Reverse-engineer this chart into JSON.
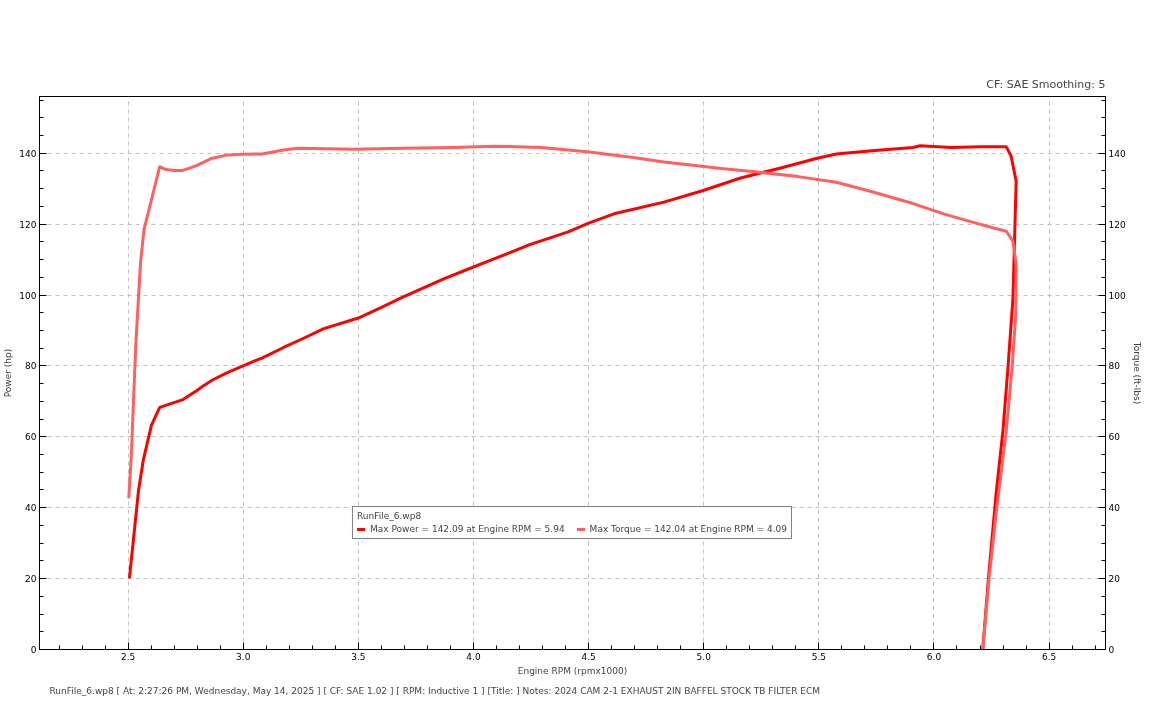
{
  "chart_data": {
    "type": "line",
    "subtitle": "CF: SAE Smoothing: 5",
    "xlabel": "Engine RPM (rpmx1000)",
    "ylabel": "Power (hp)",
    "y2label": "Torque (ft-lbs)",
    "legend_title": "RunFile_6.wp8",
    "annotations": [
      "RunFile_6.wp8 [ At: 2:27:26 PM, Wednesday, May 14, 2025 ] [ CF: SAE 1.02 ] [ RPM: Inductive 1 ] [Title: ]  Notes: 2024 CAM 2-1 EXHAUST 2IN BAFFEL STOCK TB FILTER ECM"
    ],
    "series": [
      {
        "name": "Max Power = 142.09 at Engine RPM = 5.94",
        "color": "#ff0000",
        "x": [
          2.506,
          2.545,
          2.566,
          2.601,
          2.637,
          2.735,
          2.797,
          2.829,
          2.868,
          2.931,
          2.994,
          3.042,
          3.081,
          3.175,
          3.262,
          3.35,
          3.5,
          3.6,
          3.695,
          3.868,
          4.0,
          4.078,
          4.244,
          4.411,
          4.5,
          4.61,
          4.827,
          4.994,
          5.16,
          5.326,
          5.493,
          5.576,
          5.743,
          5.909,
          5.94,
          6.076,
          6.2,
          6.292,
          6.314,
          6.335,
          6.357,
          6.343,
          6.322,
          6.3,
          6.27,
          6.237,
          6.212
        ],
        "values": [
          20.4,
          44.8,
          53.5,
          63.2,
          68.3,
          70.4,
          73.0,
          74.5,
          76.1,
          78.1,
          79.9,
          81.2,
          82.2,
          85.2,
          87.8,
          90.5,
          93.5,
          96.5,
          99.5,
          104.5,
          107.9,
          109.9,
          114.2,
          117.8,
          120.3,
          122.9,
          126.2,
          129.4,
          133.0,
          135.7,
          138.6,
          139.8,
          140.8,
          141.6,
          142.1,
          141.6,
          141.8,
          141.8,
          141.8,
          139.2,
          132.1,
          99,
          80,
          62,
          44,
          20.4,
          0
        ]
      },
      {
        "name": "Max Torque = 142.04 at Engine RPM = 4.09",
        "color": "#ff6060",
        "x": [
          2.503,
          2.514,
          2.533,
          2.554,
          2.569,
          2.601,
          2.637,
          2.664,
          2.703,
          2.735,
          2.797,
          2.86,
          2.923,
          2.994,
          3.081,
          3.175,
          3.238,
          3.478,
          3.695,
          3.911,
          4.09,
          4.294,
          4.494,
          4.694,
          4.827,
          5.077,
          5.243,
          5.41,
          5.576,
          5.743,
          5.909,
          6.042,
          6.159,
          6.259,
          6.314,
          6.343,
          6.357,
          6.355,
          6.34,
          6.314,
          6.27,
          6.24,
          6.212
        ],
        "values": [
          43.0,
          55.0,
          85.8,
          109.3,
          118.5,
          126.8,
          136.2,
          135.4,
          135.1,
          135.1,
          136.5,
          138.5,
          139.4,
          139.7,
          139.8,
          140.9,
          141.4,
          141.1,
          141.4,
          141.6,
          142.0,
          141.6,
          140.4,
          138.8,
          137.5,
          135.7,
          134.6,
          133.4,
          131.8,
          128.9,
          125.8,
          122.9,
          120.7,
          118.9,
          118.0,
          115.2,
          108.7,
          94.6,
          80,
          61.7,
          38.3,
          20.4,
          0
        ]
      }
    ],
    "xlim": [
      2.115,
      6.745
    ],
    "ylim": [
      0,
      156
    ],
    "y2lim": [
      0,
      156
    ],
    "xticks": [
      {
        "value": 2.2,
        "label": null
      },
      {
        "value": 2.3,
        "label": null
      },
      {
        "value": 2.4,
        "label": null
      },
      2.5,
      {
        "value": 2.6,
        "label": null
      },
      {
        "value": 2.7,
        "label": null
      },
      {
        "value": 2.8,
        "label": null
      },
      {
        "value": 2.9,
        "label": null
      },
      {
        "value": 3,
        "label": "3.0"
      },
      {
        "value": 3.1,
        "label": null
      },
      {
        "value": 3.2,
        "label": null
      },
      {
        "value": 3.3,
        "label": null
      },
      {
        "value": 3.4,
        "label": null
      },
      3.5,
      {
        "value": 3.6,
        "label": null
      },
      {
        "value": 3.7,
        "label": null
      },
      {
        "value": 3.8,
        "label": null
      },
      {
        "value": 3.9,
        "label": null
      },
      {
        "value": 4,
        "label": "4.0"
      },
      {
        "value": 4.1,
        "label": null
      },
      {
        "value": 4.2,
        "label": null
      },
      {
        "value": 4.3,
        "label": null
      },
      {
        "value": 4.4,
        "label": null
      },
      4.5,
      {
        "value": 4.6,
        "label": null
      },
      {
        "value": 4.7,
        "label": null
      },
      {
        "value": 4.8,
        "label": null
      },
      {
        "value": 4.9,
        "label": null
      },
      {
        "value": 5,
        "label": "5.0"
      },
      {
        "value": 5.1,
        "label": null
      },
      {
        "value": 5.2,
        "label": null
      },
      {
        "value": 5.3,
        "label": null
      },
      {
        "value": 5.4,
        "label": null
      },
      5.5,
      {
        "value": 5.6,
        "label": null
      },
      {
        "value": 5.7,
        "label": null
      },
      {
        "value": 5.8,
        "label": null
      },
      {
        "value": 5.9,
        "label": null
      },
      {
        "value": 6,
        "label": "6.0"
      },
      {
        "value": 6.1,
        "label": null
      },
      {
        "value": 6.2,
        "label": null
      },
      {
        "value": 6.3,
        "label": null
      },
      {
        "value": 6.4,
        "label": null
      },
      6.5,
      {
        "value": 6.6,
        "label": null
      },
      {
        "value": 6.7,
        "label": null
      }
    ],
    "yticks": [
      0,
      {
        "value": 5,
        "label": null
      },
      {
        "value": 10,
        "label": null
      },
      {
        "value": 15,
        "label": null
      },
      20,
      {
        "value": 25,
        "label": null
      },
      {
        "value": 30,
        "label": null
      },
      {
        "value": 35,
        "label": null
      },
      40,
      {
        "value": 45,
        "label": null
      },
      {
        "value": 50,
        "label": null
      },
      {
        "value": 55,
        "label": null
      },
      60,
      {
        "value": 65,
        "label": null
      },
      {
        "value": 70,
        "label": null
      },
      {
        "value": 75,
        "label": null
      },
      80,
      {
        "value": 85,
        "label": null
      },
      {
        "value": 90,
        "label": null
      },
      {
        "value": 95,
        "label": null
      },
      100,
      {
        "value": 105,
        "label": null
      },
      {
        "value": 110,
        "label": null
      },
      {
        "value": 115,
        "label": null
      },
      120,
      {
        "value": 125,
        "label": null
      },
      {
        "value": 130,
        "label": null
      },
      {
        "value": 135,
        "label": null
      },
      140,
      {
        "value": 145,
        "label": null
      },
      {
        "value": 150,
        "label": null
      },
      {
        "value": 155,
        "label": null
      }
    ],
    "y2ticks": [
      0,
      {
        "value": 5,
        "label": null
      },
      {
        "value": 10,
        "label": null
      },
      {
        "value": 15,
        "label": null
      },
      20,
      {
        "value": 25,
        "label": null
      },
      {
        "value": 30,
        "label": null
      },
      {
        "value": 35,
        "label": null
      },
      40,
      {
        "value": 45,
        "label": null
      },
      {
        "value": 50,
        "label": null
      },
      {
        "value": 55,
        "label": null
      },
      60,
      {
        "value": 65,
        "label": null
      },
      {
        "value": 70,
        "label": null
      },
      {
        "value": 75,
        "label": null
      },
      80,
      {
        "value": 85,
        "label": null
      },
      {
        "value": 90,
        "label": null
      },
      {
        "value": 95,
        "label": null
      },
      100,
      {
        "value": 105,
        "label": null
      },
      {
        "value": 110,
        "label": null
      },
      {
        "value": 115,
        "label": null
      },
      120,
      {
        "value": 125,
        "label": null
      },
      {
        "value": 130,
        "label": null
      },
      {
        "value": 135,
        "label": null
      },
      140,
      {
        "value": 145,
        "label": null
      },
      {
        "value": 150,
        "label": null
      },
      {
        "value": 155,
        "label": null
      }
    ],
    "grid": true,
    "legend": "bottom",
    "line_style": "solid"
  }
}
